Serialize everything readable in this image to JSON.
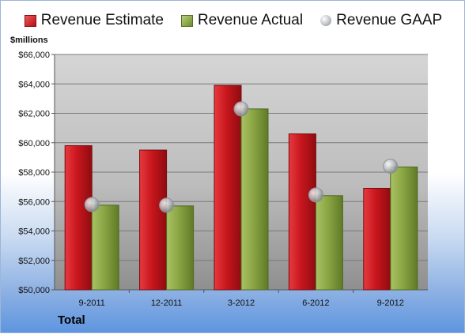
{
  "chart_data": {
    "type": "bar",
    "categories": [
      "9-2011",
      "12-2011",
      "3-2012",
      "6-2012",
      "9-2012"
    ],
    "series": [
      {
        "name": "Revenue Estimate",
        "kind": "bar",
        "color": "#c8161d",
        "values": [
          59800,
          59500,
          63900,
          60600,
          56900
        ]
      },
      {
        "name": "Revenue Actual",
        "kind": "bar",
        "color": "#8aa543",
        "values": [
          55750,
          55700,
          62300,
          56400,
          58350
        ]
      },
      {
        "name": "Revenue GAAP",
        "kind": "marker",
        "color": "#b8bcc2",
        "values": [
          55800,
          55750,
          62300,
          56450,
          58400
        ]
      }
    ],
    "ylabel": "$millions",
    "ylim": [
      50000,
      66000
    ],
    "yticks": [
      "$50,000",
      "$52,000",
      "$54,000",
      "$56,000",
      "$58,000",
      "$60,000",
      "$62,000",
      "$64,000",
      "$66,000"
    ],
    "grid": true,
    "legend": "top"
  },
  "footer": {
    "label": "Total"
  }
}
